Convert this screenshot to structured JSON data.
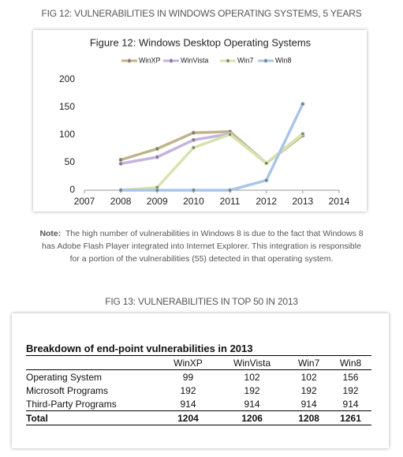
{
  "fig12_caption": "FIG 12: VULNERABILITIES IN WINDOWS OPERATING SYSTEMS, 5 YEARS",
  "chart_data": {
    "type": "line",
    "title": "Figure 12: Windows Desktop Operating Systems",
    "x": [
      2008,
      2009,
      2010,
      2011,
      2012,
      2013
    ],
    "series": [
      {
        "name": "WinXP",
        "color": "#bfb389",
        "values": [
          55,
          75,
          104,
          106,
          49,
          99
        ]
      },
      {
        "name": "WinVista",
        "color": "#c6b3de",
        "values": [
          48,
          60,
          91,
          102,
          49,
          102
        ]
      },
      {
        "name": "Win7",
        "color": "#d6e4ab",
        "values": [
          0,
          5,
          77,
          101,
          49,
          102
        ]
      },
      {
        "name": "Win8",
        "color": "#a9c6e8",
        "values": [
          0,
          0,
          0,
          0,
          18,
          156
        ]
      }
    ],
    "xlim": [
      2007,
      2014
    ],
    "xticks": [
      2007,
      2008,
      2009,
      2010,
      2011,
      2012,
      2013,
      2014
    ],
    "ylim": [
      0,
      200
    ],
    "yticks": [
      0,
      50,
      100,
      150,
      200
    ],
    "legend": "top"
  },
  "note": {
    "label": "Note:",
    "text": "The high number of vulnerabilities in Windows 8 is due to the fact that Windows 8 has Adobe Flash Player integrated into Internet Explorer. This integration is responsible for a portion of the vulnerabilities (55) detected in that operating system."
  },
  "fig13_caption": "FIG 13: VULNERABILITIES IN TOP 50 IN 2013",
  "table": {
    "title": "Breakdown of end-point vulnerabilities in 2013",
    "columns": [
      "WinXP",
      "WinVista",
      "Win7",
      "Win8"
    ],
    "rows": [
      {
        "label": "Operating System",
        "values": [
          99,
          102,
          102,
          156
        ]
      },
      {
        "label": "Microsoft Programs",
        "values": [
          192,
          192,
          192,
          192
        ]
      },
      {
        "label": "Third-Party Programs",
        "values": [
          914,
          914,
          914,
          914
        ]
      },
      {
        "label": "Total",
        "values": [
          1204,
          1206,
          1208,
          1261
        ]
      }
    ]
  }
}
